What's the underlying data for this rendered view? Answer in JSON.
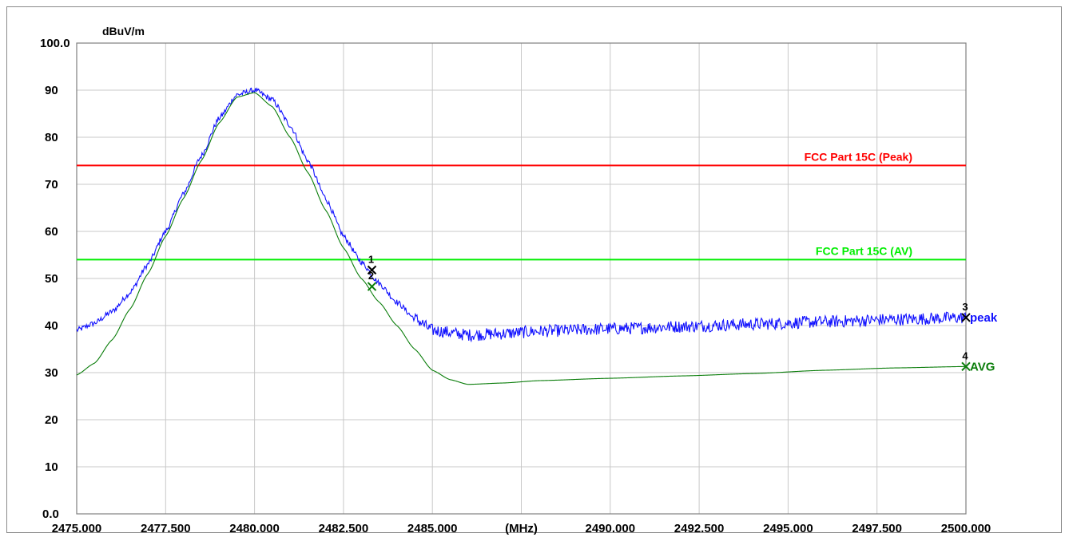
{
  "chart_data": {
    "type": "line",
    "ylabel": "dBuV/m",
    "xlabel": "(MHz)",
    "xlim": [
      2475.0,
      2500.0
    ],
    "ylim": [
      0.0,
      100.0
    ],
    "grid": true,
    "x_tick_labels": [
      "2475.000",
      "2477.500",
      "2480.000",
      "2482.500",
      "2485.000",
      "(MHz)",
      "2490.000",
      "2492.500",
      "2495.000",
      "2497.500",
      "2500.000"
    ],
    "x_tick_values": [
      2475.0,
      2477.5,
      2480.0,
      2482.5,
      2485.0,
      2487.5,
      2490.0,
      2492.5,
      2495.0,
      2497.5,
      2500.0
    ],
    "y_ticks": [
      {
        "label": "0.0",
        "value": 0
      },
      {
        "label": "10",
        "value": 10
      },
      {
        "label": "20",
        "value": 20
      },
      {
        "label": "30",
        "value": 30
      },
      {
        "label": "40",
        "value": 40
      },
      {
        "label": "50",
        "value": 50
      },
      {
        "label": "60",
        "value": 60
      },
      {
        "label": "70",
        "value": 70
      },
      {
        "label": "80",
        "value": 80
      },
      {
        "label": "90",
        "value": 90
      },
      {
        "label": "100.0",
        "value": 100
      }
    ],
    "limit_lines": [
      {
        "label": "FCC Part 15C (Peak)",
        "value": 74.0,
        "color": "#ff0000"
      },
      {
        "label": "FCC Part 15C (AV)",
        "value": 54.0,
        "color": "#00ee00"
      }
    ],
    "series": [
      {
        "name": "peak",
        "color": "#1010ff",
        "noise": 0.6,
        "x": [
          2475.0,
          2475.5,
          2476.0,
          2476.5,
          2477.0,
          2477.5,
          2478.0,
          2478.5,
          2479.0,
          2479.5,
          2480.0,
          2480.5,
          2481.0,
          2481.5,
          2482.0,
          2482.5,
          2483.0,
          2483.5,
          2484.0,
          2484.5,
          2485.0,
          2486.0,
          2487.0,
          2488.0,
          2490.0,
          2492.0,
          2494.0,
          2496.0,
          2498.0,
          2500.0
        ],
        "values": [
          39.0,
          40.5,
          43.0,
          47.0,
          53.0,
          60.0,
          68.0,
          76.0,
          84.0,
          89.0,
          90.0,
          88.0,
          82.5,
          75.0,
          67.0,
          59.0,
          53.5,
          49.0,
          45.0,
          41.5,
          39.0,
          38.0,
          38.3,
          38.8,
          39.3,
          39.8,
          40.3,
          40.8,
          41.3,
          41.7
        ]
      },
      {
        "name": "AVG",
        "color": "#0a7d0a",
        "noise": 0.0,
        "x": [
          2475.0,
          2475.5,
          2476.0,
          2476.5,
          2477.0,
          2477.5,
          2478.0,
          2478.5,
          2479.0,
          2479.5,
          2480.0,
          2480.5,
          2481.0,
          2481.5,
          2482.0,
          2482.5,
          2483.0,
          2483.5,
          2484.0,
          2484.5,
          2485.0,
          2485.5,
          2486.0,
          2487.0,
          2488.0,
          2490.0,
          2492.0,
          2494.0,
          2496.0,
          2498.0,
          2500.0
        ],
        "values": [
          29.5,
          32.0,
          37.0,
          43.5,
          51.0,
          59.0,
          67.0,
          75.0,
          83.0,
          88.5,
          89.5,
          86.5,
          80.0,
          72.5,
          64.5,
          56.5,
          50.0,
          45.0,
          40.0,
          35.0,
          30.5,
          28.5,
          27.5,
          27.8,
          28.3,
          28.8,
          29.3,
          29.8,
          30.5,
          31.0,
          31.3
        ]
      }
    ],
    "markers": [
      {
        "label": "1",
        "x": 2483.3,
        "y": 51.8,
        "color": "#000000"
      },
      {
        "label": "2",
        "x": 2483.3,
        "y": 48.3,
        "color": "#0a7d0a"
      },
      {
        "label": "3",
        "x": 2500.0,
        "y": 41.7,
        "color": "#000000"
      },
      {
        "label": "4",
        "x": 2500.0,
        "y": 31.3,
        "color": "#0a7d0a"
      }
    ],
    "trace_labels": [
      {
        "text": "peak",
        "series": "peak",
        "color": "#1010ff"
      },
      {
        "text": "AVG",
        "series": "AVG",
        "color": "#0a7d0a"
      }
    ]
  }
}
